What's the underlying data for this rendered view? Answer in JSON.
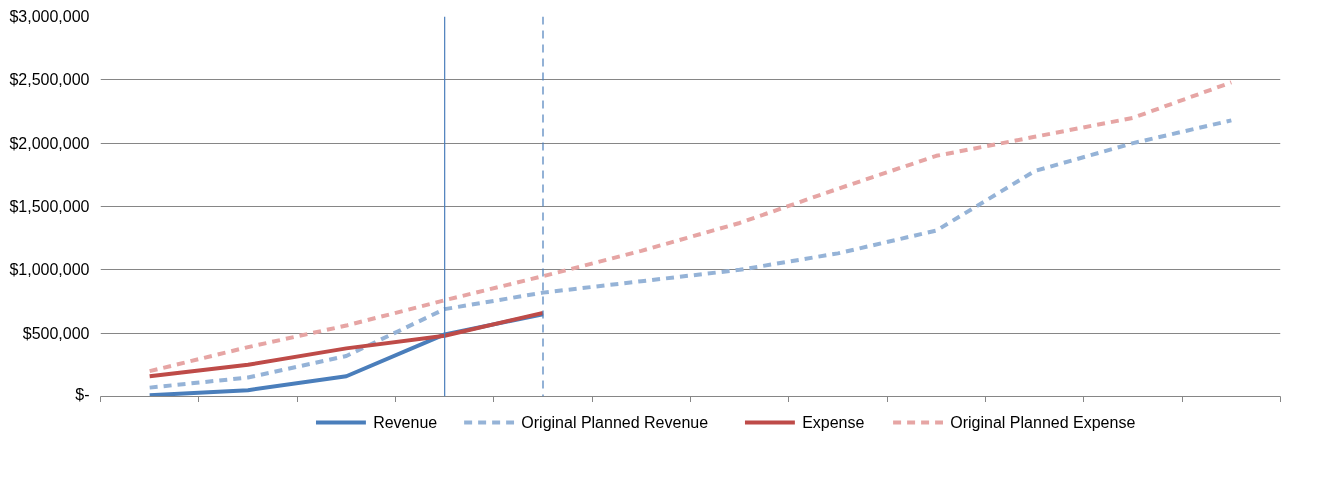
{
  "chart_data": {
    "type": "line",
    "categories": [
      null,
      null,
      null,
      null,
      null,
      null,
      null,
      null,
      null,
      null,
      null,
      null
    ],
    "ylim": [
      0,
      3000000
    ],
    "yticks": [
      {
        "value": 0,
        "label": "$-"
      },
      {
        "value": 500000,
        "label": "$500,000"
      },
      {
        "value": 1000000,
        "label": "$1,000,000"
      },
      {
        "value": 1500000,
        "label": "$1,500,000"
      },
      {
        "value": 2000000,
        "label": "$2,000,000"
      },
      {
        "value": 2500000,
        "label": "$2,500,000"
      },
      {
        "value": 3000000,
        "label": "$3,000,000"
      }
    ],
    "grid": "y",
    "legend": "bottom",
    "series": [
      {
        "name": "Revenue",
        "color": "#4a7ebb",
        "line_style": "solid",
        "values": [
          10000,
          50000,
          160000,
          490000,
          650000,
          null,
          null,
          null,
          null,
          null,
          null,
          null
        ]
      },
      {
        "name": "Original Planned Revenue",
        "color": "#95b3d7",
        "line_style": "dashed",
        "values": [
          70000,
          150000,
          320000,
          690000,
          820000,
          910000,
          1000000,
          1130000,
          1310000,
          1780000,
          2000000,
          2180000
        ]
      },
      {
        "name": "Expense",
        "color": "#be4b48",
        "line_style": "solid",
        "values": [
          160000,
          250000,
          380000,
          480000,
          660000,
          null,
          null,
          null,
          null,
          null,
          null,
          null
        ]
      },
      {
        "name": "Original Planned Expense",
        "color": "#e6a5a4",
        "line_style": "dashed",
        "values": [
          200000,
          390000,
          560000,
          760000,
          950000,
          1150000,
          1370000,
          1640000,
          1900000,
          2050000,
          2200000,
          2480000
        ]
      }
    ]
  }
}
